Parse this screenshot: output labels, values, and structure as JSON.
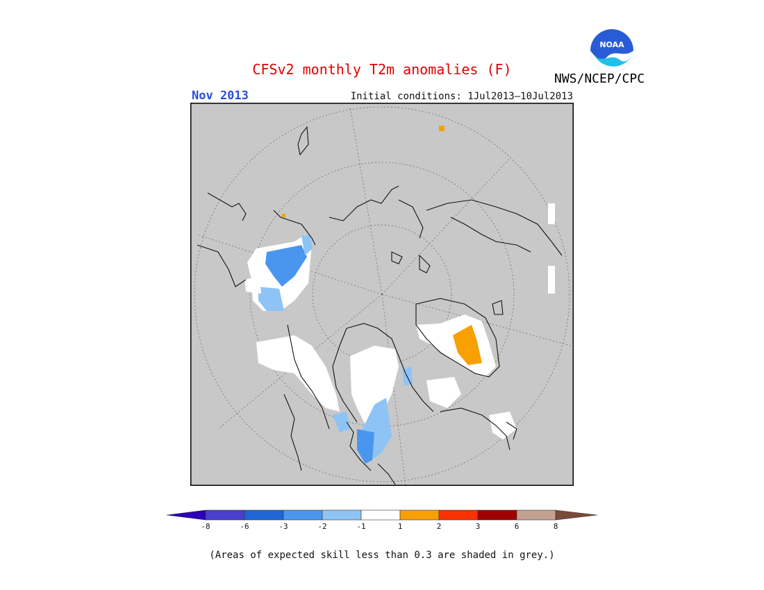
{
  "header": {
    "title": "CFSv2 monthly T2m anomalies (F)",
    "period": "Nov 2013",
    "initial_conditions": "Initial conditions: 1Jul2013–10Jul2013",
    "organization": "NWS/NCEP/CPC",
    "logo_text": "NOAA"
  },
  "legend": {
    "tick_labels": [
      "-8",
      "-6",
      "-3",
      "-2",
      "-1",
      "1",
      "2",
      "3",
      "6",
      "8"
    ],
    "colors": [
      "#2b00b8",
      "#4a3fcc",
      "#1f66d6",
      "#4a96ef",
      "#8ec3f5",
      "#ffffff",
      "#f7a000",
      "#ff3000",
      "#a00000",
      "#c4a090",
      "#7a4a38"
    ]
  },
  "note": "(Areas of expected skill less than 0.3 are shaded in grey.)",
  "map": {
    "background_color": "#c8c8c8",
    "projection": "polar-stereographic (north)",
    "colors": {
      "grey_low_skill": "#c8c8c8",
      "near_normal": "#ffffff",
      "below_-2": "#4a96ef",
      "below_-1": "#8ec3f5",
      "above_1": "#f7a000"
    }
  }
}
